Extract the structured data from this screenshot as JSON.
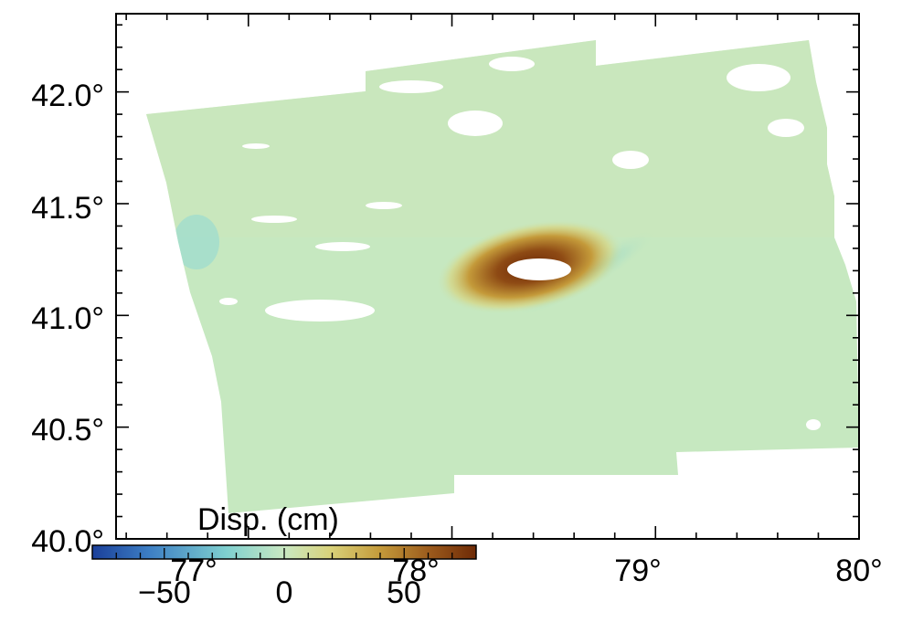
{
  "map": {
    "y_ticks": [
      {
        "value": 42.0,
        "label": "42.0°"
      },
      {
        "value": 41.5,
        "label": "41.5°"
      },
      {
        "value": 41.0,
        "label": "41.0°"
      },
      {
        "value": 40.5,
        "label": "40.5°"
      },
      {
        "value": 40.0,
        "label": "40.0°"
      }
    ],
    "x_ticks": [
      {
        "value": 77,
        "label": "77°"
      },
      {
        "value": 78,
        "label": "78°"
      },
      {
        "value": 79,
        "label": "79°"
      },
      {
        "value": 80,
        "label": "80°"
      }
    ],
    "x_range": [
      76.35,
      80.0
    ],
    "y_range": [
      40.0,
      42.35
    ],
    "colorbar": {
      "title": "Disp. (cm)",
      "range": [
        -80,
        80
      ],
      "ticks": [
        {
          "value": -50,
          "label": "−50"
        },
        {
          "value": 0,
          "label": "0"
        },
        {
          "value": 50,
          "label": "50"
        }
      ],
      "colors": [
        "#1a3f9a",
        "#3d7fc4",
        "#7fd0cf",
        "#c9e8c2",
        "#d9d27a",
        "#c49a3a",
        "#9b5a1c",
        "#6e2a06"
      ]
    },
    "background_color": "#c6e8c0"
  }
}
